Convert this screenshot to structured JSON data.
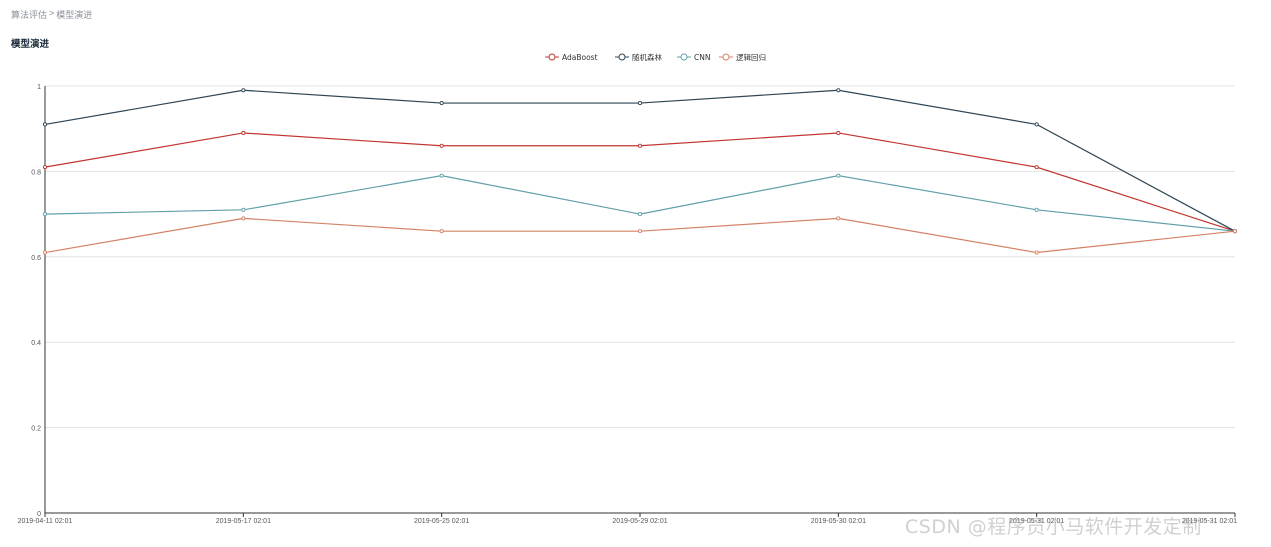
{
  "breadcrumb": {
    "items": [
      "算法评估",
      "模型演进"
    ],
    "separator": ">"
  },
  "page_title": "模型演进",
  "watermark": "CSDN @程序员小马软件开发定制",
  "chart_data": {
    "type": "line",
    "title": "",
    "xlabel": "",
    "ylabel": "",
    "ylim": [
      0,
      1
    ],
    "yticks": [
      0,
      0.2,
      0.4,
      0.6,
      0.8,
      1
    ],
    "grid": true,
    "legend_position": "top-center",
    "categories": [
      "2019-04-11 02:01",
      "2019-05-17 02:01",
      "2019-05-25 02:01",
      "2019-05-29 02:01",
      "2019-05-30 02:01",
      "2019-05-31 02:01",
      "2019-05-31 02:01"
    ],
    "series": [
      {
        "name": "AdaBoost",
        "color": "#c23531",
        "values": [
          0.81,
          0.89,
          0.86,
          0.86,
          0.89,
          0.81,
          0.66
        ]
      },
      {
        "name": "随机森林",
        "color": "#2f4554",
        "values": [
          0.91,
          0.99,
          0.96,
          0.96,
          0.99,
          0.91,
          0.66
        ]
      },
      {
        "name": "CNN",
        "color": "#61a0a8",
        "values": [
          0.7,
          0.71,
          0.79,
          0.7,
          0.79,
          0.71,
          0.66
        ]
      },
      {
        "name": "逻辑回归",
        "color": "#d48265",
        "values": [
          0.61,
          0.69,
          0.66,
          0.66,
          0.69,
          0.61,
          0.66
        ]
      }
    ]
  }
}
